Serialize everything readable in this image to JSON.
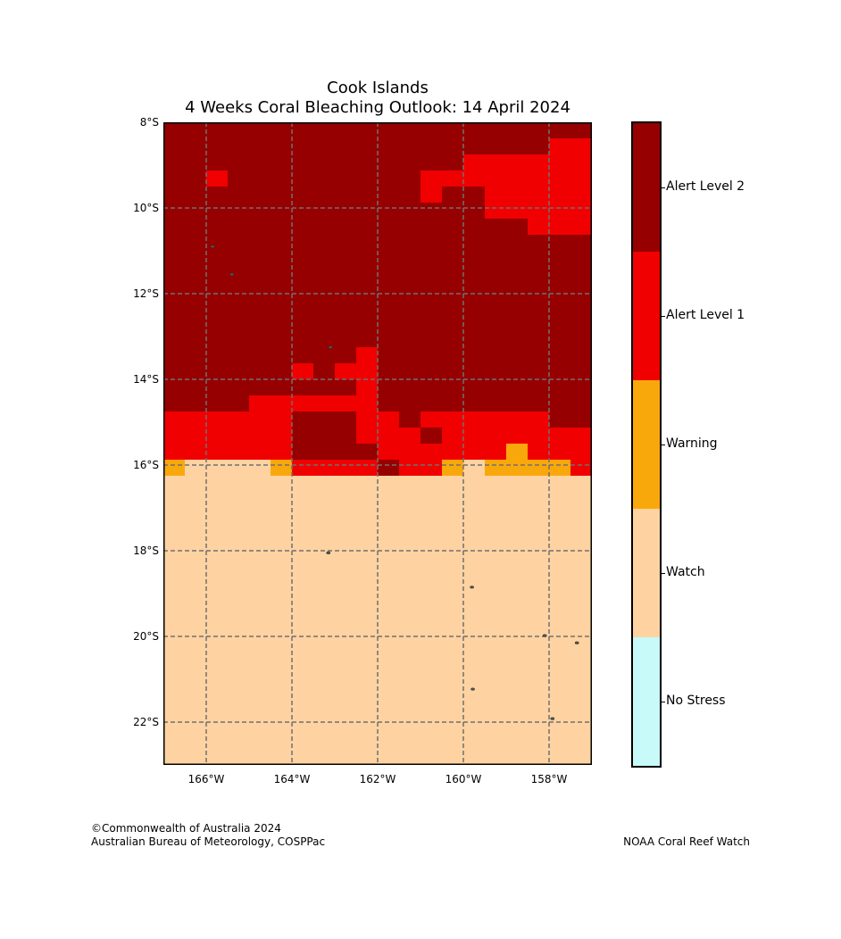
{
  "title": {
    "line1": "Cook Islands",
    "line2": "4 Weeks Coral Bleaching Outlook: 14 April 2024"
  },
  "map": {
    "lon_range": [
      -167,
      -157
    ],
    "lat_range": [
      -23,
      -8
    ],
    "grid_step_deg": 0.5,
    "lat_ticks": [
      "8°S",
      "10°S",
      "12°S",
      "14°S",
      "16°S",
      "18°S",
      "20°S",
      "22°S"
    ],
    "lat_values": [
      -8,
      -10,
      -12,
      -14,
      -16,
      -18,
      -20,
      -22
    ],
    "lon_ticks": [
      "166°W",
      "164°W",
      "162°W",
      "160°W",
      "158°W"
    ],
    "lon_values": [
      -166,
      -164,
      -162,
      -160,
      -158
    ],
    "grid_rows_north_to_south": [
      "44444444444444444444",
      "44444444444444444433",
      "44444444444444333333",
      "44344444444433333333",
      "44444444444434433333",
      "44444444444444433333",
      "44444444444444444333",
      "44444444444444444444",
      "44444444444444444444",
      "44444444444444444444",
      "44444444444444444444",
      "44444444444444444444",
      "44444444444444444444",
      "44444444444444444444",
      "44444444434444444444",
      "44444434334444444444",
      "44444444434444444444",
      "44443333334444444444",
      "33333344433433333344",
      "33333344433343333333",
      "33333344443333332333",
      "21111233334332122223",
      "11111111111111111111",
      "11111111111111111111",
      "11111111111111111111",
      "11111111111111111111",
      "11111111111111111111",
      "11111111111111111111",
      "11111111111111111111",
      "11111111111111111111",
      "11111111111111111111",
      "11111111111111111111",
      "11111111111111111111",
      "11111111111111111111",
      "11111111111111111111",
      "11111111111111111111",
      "11111111111111111111",
      "11111111111111111111",
      "11111111111111111111",
      "11111111111111111111"
    ],
    "islands": [
      {
        "name": "island-pukapuka",
        "lon": -165.85,
        "lat": -10.9
      },
      {
        "name": "island-nassau",
        "lon": -165.4,
        "lat": -11.55
      },
      {
        "name": "island-suwarrow",
        "lon": -163.1,
        "lat": -13.25
      },
      {
        "name": "island-palmerston",
        "lon": -163.15,
        "lat": -18.05
      },
      {
        "name": "island-aitutaki",
        "lon": -159.8,
        "lat": -18.85
      },
      {
        "name": "island-atiu",
        "lon": -158.1,
        "lat": -19.98
      },
      {
        "name": "island-mauke",
        "lon": -157.35,
        "lat": -20.15
      },
      {
        "name": "island-rarotonga",
        "lon": -159.78,
        "lat": -21.23
      },
      {
        "name": "island-mangaia",
        "lon": -157.92,
        "lat": -21.92
      }
    ]
  },
  "legend": {
    "levels": [
      {
        "label": "Alert Level 2",
        "color": "#960000"
      },
      {
        "label": "Alert Level 1",
        "color": "#f00000"
      },
      {
        "label": "Warning",
        "color": "#f9a80c"
      },
      {
        "label": "Watch",
        "color": "#fed3a1"
      },
      {
        "label": "No Stress",
        "color": "#c8fafa"
      }
    ]
  },
  "footer": {
    "copyright": "©Commonwealth of Australia 2024",
    "agency": "Australian Bureau of Meteorology, COSPPac",
    "source": "NOAA Coral Reef Watch"
  }
}
